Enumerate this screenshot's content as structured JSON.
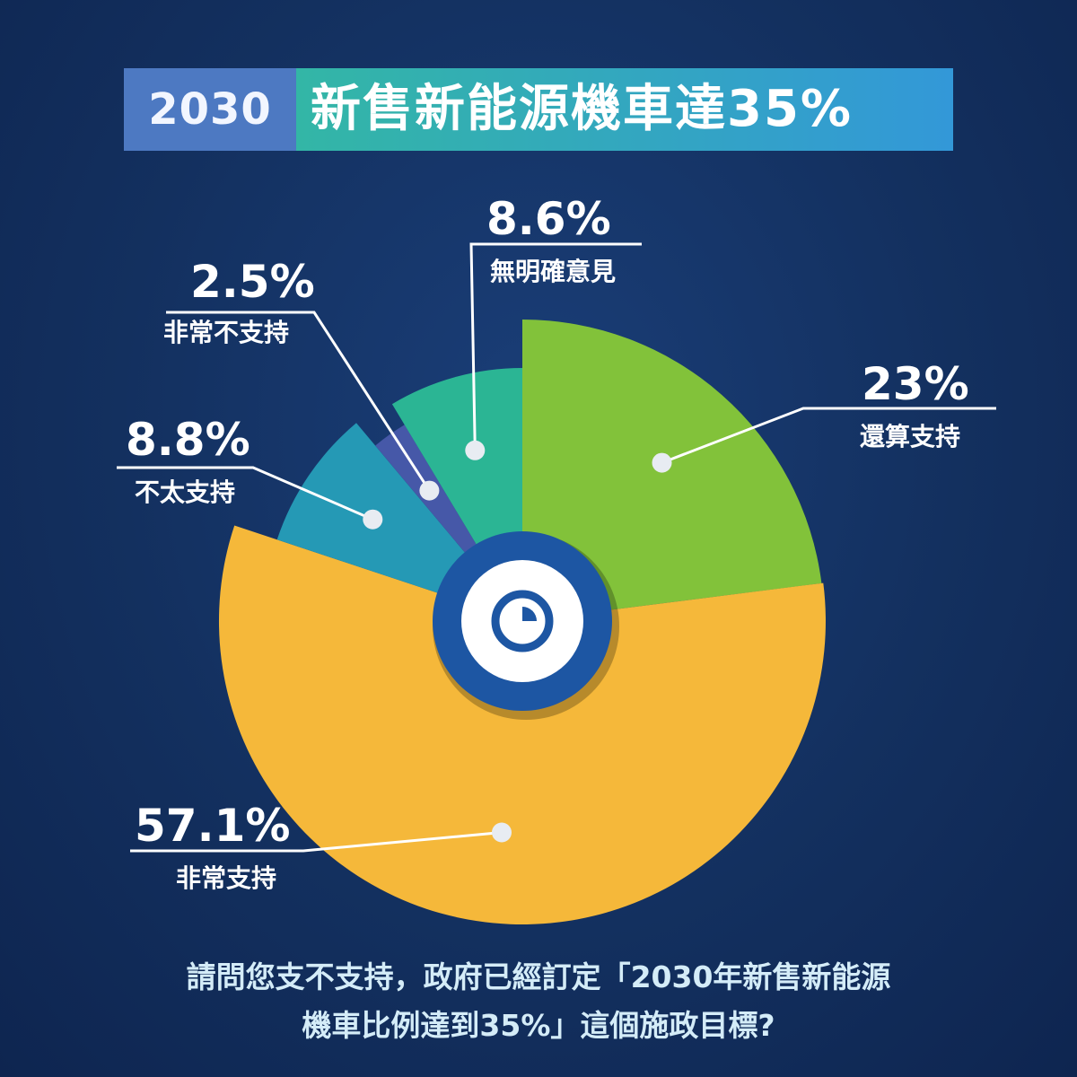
{
  "header": {
    "year": "2030",
    "title": "新售新能源機車達35%"
  },
  "colors": {
    "還算支持": "#82c23a",
    "非常支持": "#f5b83a",
    "不太支持": "#2599b5",
    "非常不支持": "#4658a8",
    "無明確意見": "#2bb594",
    "center_ring": "#1d56a3",
    "title_year_bg": "#4d79c2"
  },
  "center_icon": "pie-chart-icon",
  "chart_data": {
    "type": "pie",
    "labels": [
      "還算支持",
      "非常支持",
      "不太支持",
      "非常不支持",
      "無明確意見"
    ],
    "values": [
      23,
      57.1,
      8.8,
      2.5,
      8.6
    ],
    "value_labels": [
      "23%",
      "57.1%",
      "8.8%",
      "2.5%",
      "8.6%"
    ],
    "title": "新售新能源機車達35%",
    "legend": "none"
  },
  "question": {
    "line1": "請問您支不支持，政府已經訂定「2030年新售新能源",
    "line2": "機車比例達到35%」這個施政目標?"
  }
}
